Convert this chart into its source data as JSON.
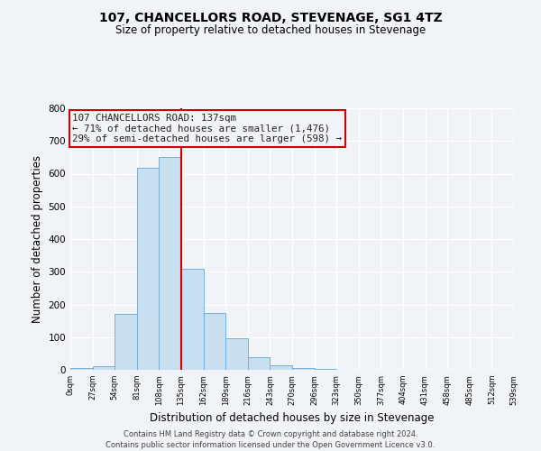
{
  "title": "107, CHANCELLORS ROAD, STEVENAGE, SG1 4TZ",
  "subtitle": "Size of property relative to detached houses in Stevenage",
  "xlabel": "Distribution of detached houses by size in Stevenage",
  "ylabel": "Number of detached properties",
  "bin_edges": [
    0,
    27,
    54,
    81,
    108,
    135,
    162,
    189,
    216,
    243,
    270,
    297,
    324,
    351,
    378,
    405,
    432,
    459,
    486,
    513,
    540
  ],
  "bar_heights": [
    5,
    12,
    172,
    617,
    652,
    308,
    175,
    97,
    40,
    15,
    5,
    2,
    1,
    0,
    1,
    0,
    0,
    0,
    0,
    0
  ],
  "bar_color": "#c8dff0",
  "bar_edge_color": "#7aaed4",
  "property_line_x": 135,
  "property_line_color": "#cc0000",
  "annotation_line1": "107 CHANCELLORS ROAD: 137sqm",
  "annotation_line2": "← 71% of detached houses are smaller (1,476)",
  "annotation_line3": "29% of semi-detached houses are larger (598) →",
  "annotation_box_color": "#cc0000",
  "annotation_text_color": "#222222",
  "ylim": [
    0,
    800
  ],
  "yticks": [
    0,
    100,
    200,
    300,
    400,
    500,
    600,
    700,
    800
  ],
  "xtick_labels": [
    "0sqm",
    "27sqm",
    "54sqm",
    "81sqm",
    "108sqm",
    "135sqm",
    "162sqm",
    "189sqm",
    "216sqm",
    "243sqm",
    "270sqm",
    "296sqm",
    "323sqm",
    "350sqm",
    "377sqm",
    "404sqm",
    "431sqm",
    "458sqm",
    "485sqm",
    "512sqm",
    "539sqm"
  ],
  "background_color": "#f0f4f8",
  "plot_bg_color": "#f0f4f8",
  "grid_color": "#ffffff",
  "footer_line1": "Contains HM Land Registry data © Crown copyright and database right 2024.",
  "footer_line2": "Contains public sector information licensed under the Open Government Licence v3.0."
}
